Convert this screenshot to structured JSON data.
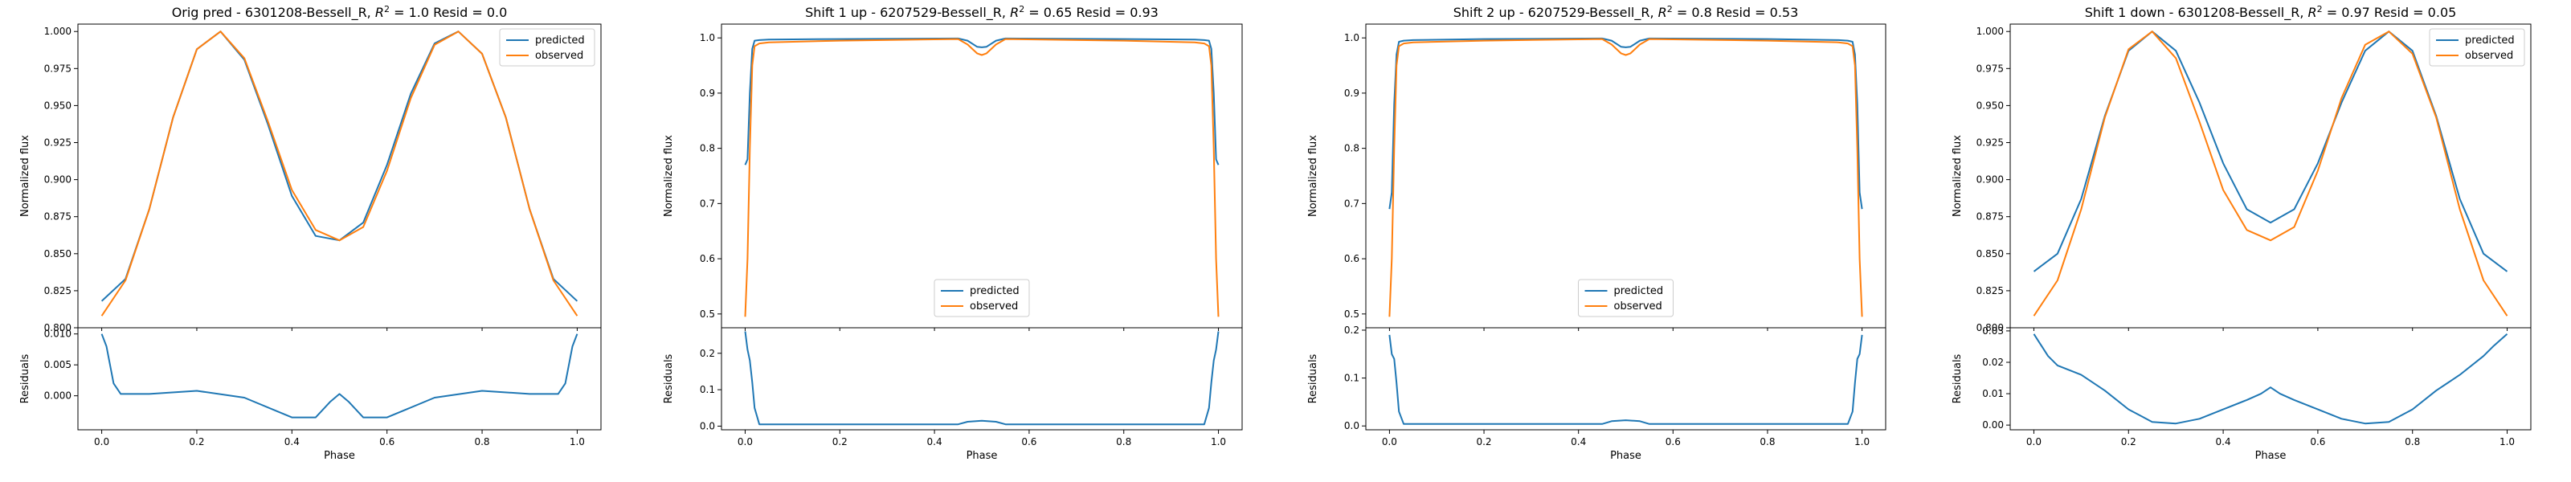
{
  "figure": {
    "colors": {
      "predicted": "#1f77b4",
      "observed": "#ff7f0e"
    },
    "legend_labels": [
      "predicted",
      "observed"
    ]
  },
  "chart_data": [
    {
      "type": "line",
      "title_prefix": "Orig pred - 6301208-Bessell_R, ",
      "r2_label": "R",
      "title_suffix": " = 1.0 Resid = 0.0",
      "xlabel": "Phase",
      "ylabel": "Normalized flux",
      "resid_ylabel": "Residuals",
      "xlim": [
        -0.05,
        1.05
      ],
      "xticks": [
        "0.0",
        "0.2",
        "0.4",
        "0.6",
        "0.8",
        "1.0"
      ],
      "ylim": [
        0.8,
        1.005
      ],
      "yticks": [
        "0.800",
        "0.825",
        "0.850",
        "0.875",
        "0.900",
        "0.925",
        "0.950",
        "0.975",
        "1.000"
      ],
      "resid_ylim": [
        -0.0055,
        0.011
      ],
      "resid_yticks": [
        "0.000",
        "0.005",
        "0.010"
      ],
      "legend_loc": "upper right",
      "x": [
        0.0,
        0.05,
        0.1,
        0.15,
        0.2,
        0.25,
        0.3,
        0.35,
        0.4,
        0.45,
        0.5,
        0.55,
        0.6,
        0.65,
        0.7,
        0.75,
        0.8,
        0.85,
        0.9,
        0.95,
        1.0
      ],
      "series": [
        {
          "name": "predicted",
          "values": [
            0.818,
            0.833,
            0.88,
            0.942,
            0.988,
            1.0,
            0.981,
            0.937,
            0.889,
            0.862,
            0.859,
            0.871,
            0.91,
            0.958,
            0.992,
            1.0,
            0.985,
            0.942,
            0.88,
            0.833,
            0.818
          ]
        },
        {
          "name": "observed",
          "values": [
            0.808,
            0.832,
            0.88,
            0.942,
            0.988,
            1.0,
            0.982,
            0.939,
            0.893,
            0.866,
            0.859,
            0.868,
            0.906,
            0.955,
            0.991,
            1.0,
            0.985,
            0.942,
            0.88,
            0.832,
            0.808
          ]
        }
      ],
      "residuals": {
        "x": [
          0.0,
          0.01,
          0.025,
          0.04,
          0.1,
          0.2,
          0.3,
          0.4,
          0.45,
          0.48,
          0.5,
          0.52,
          0.55,
          0.6,
          0.7,
          0.8,
          0.9,
          0.96,
          0.975,
          0.99,
          1.0
        ],
        "values": [
          0.01,
          0.008,
          0.002,
          0.0003,
          0.0003,
          0.0008,
          -0.0003,
          -0.0035,
          -0.0035,
          -0.001,
          0.0003,
          -0.001,
          -0.0035,
          -0.0035,
          -0.0003,
          0.0008,
          0.0003,
          0.0003,
          0.002,
          0.008,
          0.01
        ]
      }
    },
    {
      "type": "line",
      "title_prefix": "Shift 1 up - 6207529-Bessell_R, ",
      "r2_label": "R",
      "title_suffix": " = 0.65 Resid = 0.93",
      "xlabel": "Phase",
      "ylabel": "Normalized flux",
      "resid_ylabel": "Residuals",
      "xlim": [
        -0.05,
        1.05
      ],
      "xticks": [
        "0.0",
        "0.2",
        "0.4",
        "0.6",
        "0.8",
        "1.0"
      ],
      "ylim": [
        0.475,
        1.025
      ],
      "yticks": [
        "0.5",
        "0.6",
        "0.7",
        "0.8",
        "0.9",
        "1.0"
      ],
      "resid_ylim": [
        -0.01,
        0.27
      ],
      "resid_yticks": [
        "0.0",
        "0.1",
        "0.2"
      ],
      "legend_loc": "lower center",
      "x": [
        0.0,
        0.005,
        0.01,
        0.015,
        0.02,
        0.03,
        0.05,
        0.2,
        0.45,
        0.47,
        0.49,
        0.5,
        0.51,
        0.53,
        0.55,
        0.8,
        0.95,
        0.97,
        0.98,
        0.985,
        0.99,
        0.995,
        1.0
      ],
      "series": [
        {
          "name": "predicted",
          "values": [
            0.77,
            0.78,
            0.9,
            0.98,
            0.995,
            0.996,
            0.997,
            0.998,
            0.999,
            0.995,
            0.984,
            0.983,
            0.984,
            0.995,
            0.999,
            0.998,
            0.997,
            0.996,
            0.995,
            0.98,
            0.9,
            0.78,
            0.77
          ]
        },
        {
          "name": "observed",
          "values": [
            0.495,
            0.6,
            0.8,
            0.95,
            0.985,
            0.99,
            0.992,
            0.995,
            0.998,
            0.988,
            0.972,
            0.969,
            0.972,
            0.988,
            0.998,
            0.995,
            0.992,
            0.99,
            0.985,
            0.95,
            0.8,
            0.6,
            0.495
          ]
        }
      ],
      "residuals": {
        "x": [
          0.0,
          0.005,
          0.01,
          0.015,
          0.02,
          0.03,
          0.05,
          0.45,
          0.47,
          0.5,
          0.53,
          0.55,
          0.95,
          0.97,
          0.98,
          0.985,
          0.99,
          0.995,
          1.0
        ],
        "values": [
          0.26,
          0.21,
          0.18,
          0.12,
          0.05,
          0.005,
          0.005,
          0.005,
          0.012,
          0.015,
          0.012,
          0.005,
          0.005,
          0.005,
          0.05,
          0.12,
          0.18,
          0.21,
          0.26
        ]
      }
    },
    {
      "type": "line",
      "title_prefix": "Shift 2 up - 6207529-Bessell_R, ",
      "r2_label": "R",
      "title_suffix": " = 0.8 Resid = 0.53",
      "xlabel": "Phase",
      "ylabel": "Normalized flux",
      "resid_ylabel": "Residuals",
      "xlim": [
        -0.05,
        1.05
      ],
      "xticks": [
        "0.0",
        "0.2",
        "0.4",
        "0.6",
        "0.8",
        "1.0"
      ],
      "ylim": [
        0.475,
        1.025
      ],
      "yticks": [
        "0.5",
        "0.6",
        "0.7",
        "0.8",
        "0.9",
        "1.0"
      ],
      "resid_ylim": [
        -0.008,
        0.205
      ],
      "resid_yticks": [
        "0.0",
        "0.1",
        "0.2"
      ],
      "legend_loc": "lower center",
      "x": [
        0.0,
        0.005,
        0.01,
        0.015,
        0.02,
        0.03,
        0.05,
        0.2,
        0.45,
        0.47,
        0.49,
        0.5,
        0.51,
        0.53,
        0.55,
        0.8,
        0.95,
        0.97,
        0.98,
        0.985,
        0.99,
        0.995,
        1.0
      ],
      "series": [
        {
          "name": "predicted",
          "values": [
            0.69,
            0.72,
            0.88,
            0.97,
            0.993,
            0.995,
            0.996,
            0.998,
            0.999,
            0.995,
            0.984,
            0.983,
            0.984,
            0.995,
            0.999,
            0.998,
            0.996,
            0.995,
            0.993,
            0.97,
            0.88,
            0.72,
            0.69
          ]
        },
        {
          "name": "observed",
          "values": [
            0.495,
            0.6,
            0.8,
            0.95,
            0.985,
            0.99,
            0.992,
            0.995,
            0.998,
            0.988,
            0.972,
            0.969,
            0.972,
            0.988,
            0.998,
            0.995,
            0.992,
            0.99,
            0.985,
            0.95,
            0.8,
            0.6,
            0.495
          ]
        }
      ],
      "residuals": {
        "x": [
          0.0,
          0.005,
          0.01,
          0.015,
          0.02,
          0.03,
          0.05,
          0.45,
          0.47,
          0.5,
          0.53,
          0.55,
          0.95,
          0.97,
          0.98,
          0.985,
          0.99,
          0.995,
          1.0
        ],
        "values": [
          0.19,
          0.15,
          0.14,
          0.09,
          0.03,
          0.004,
          0.004,
          0.004,
          0.01,
          0.012,
          0.01,
          0.004,
          0.004,
          0.004,
          0.03,
          0.09,
          0.14,
          0.15,
          0.19
        ]
      }
    },
    {
      "type": "line",
      "title_prefix": "Shift 1 down - 6301208-Bessell_R, ",
      "r2_label": "R",
      "title_suffix": " = 0.97 Resid = 0.05",
      "xlabel": "Phase",
      "ylabel": "Normalized flux",
      "resid_ylabel": "Residuals",
      "xlim": [
        -0.05,
        1.05
      ],
      "xticks": [
        "0.0",
        "0.2",
        "0.4",
        "0.6",
        "0.8",
        "1.0"
      ],
      "ylim": [
        0.8,
        1.005
      ],
      "yticks": [
        "0.800",
        "0.825",
        "0.850",
        "0.875",
        "0.900",
        "0.925",
        "0.950",
        "0.975",
        "1.000"
      ],
      "resid_ylim": [
        -0.0015,
        0.031
      ],
      "resid_yticks": [
        "0.00",
        "0.01",
        "0.02",
        "0.03"
      ],
      "legend_loc": "upper right",
      "x": [
        0.0,
        0.05,
        0.1,
        0.15,
        0.2,
        0.25,
        0.3,
        0.35,
        0.4,
        0.45,
        0.5,
        0.55,
        0.6,
        0.65,
        0.7,
        0.75,
        0.8,
        0.85,
        0.9,
        0.95,
        1.0
      ],
      "series": [
        {
          "name": "predicted",
          "values": [
            0.838,
            0.85,
            0.887,
            0.943,
            0.987,
            1.0,
            0.987,
            0.952,
            0.911,
            0.88,
            0.871,
            0.88,
            0.911,
            0.952,
            0.987,
            1.0,
            0.987,
            0.943,
            0.887,
            0.85,
            0.838
          ]
        },
        {
          "name": "observed",
          "values": [
            0.808,
            0.832,
            0.88,
            0.942,
            0.988,
            1.0,
            0.982,
            0.939,
            0.893,
            0.866,
            0.859,
            0.868,
            0.906,
            0.955,
            0.991,
            1.0,
            0.985,
            0.942,
            0.88,
            0.832,
            0.808
          ]
        }
      ],
      "residuals": {
        "x": [
          0.0,
          0.03,
          0.05,
          0.1,
          0.15,
          0.2,
          0.25,
          0.3,
          0.35,
          0.4,
          0.45,
          0.48,
          0.5,
          0.52,
          0.55,
          0.6,
          0.65,
          0.7,
          0.75,
          0.8,
          0.85,
          0.9,
          0.95,
          0.97,
          1.0
        ],
        "values": [
          0.029,
          0.022,
          0.019,
          0.016,
          0.011,
          0.005,
          0.001,
          0.0005,
          0.002,
          0.005,
          0.008,
          0.01,
          0.012,
          0.01,
          0.008,
          0.005,
          0.002,
          0.0005,
          0.001,
          0.005,
          0.011,
          0.016,
          0.022,
          0.025,
          0.029
        ]
      }
    }
  ]
}
